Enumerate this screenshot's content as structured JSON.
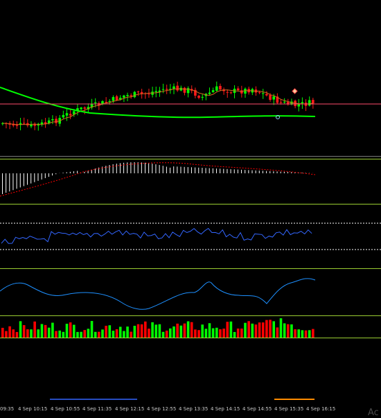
{
  "window": {
    "watermark_text": "Ac"
  },
  "colors": {
    "background": "#000000",
    "bull_candle": "#00ff00",
    "bear_candle": "#ff1a1a",
    "slow_ma": "#00ff00",
    "fast_ma": "#d2691e",
    "price_line": "#ff4d6d",
    "macd_hist": "#ffffff",
    "macd_signal": "#ff0000",
    "rsi_line": "#3366ff",
    "cci_line": "#1e90ff",
    "volume_up": "#00ff00",
    "volume_down": "#ff0000",
    "separator": "#9acd32",
    "level_line": "#ffffff",
    "time_axis_text": "#c8c8c8",
    "blue_marker": "#3366ff",
    "orange_marker": "#ff8c00"
  },
  "time_axis": {
    "labels": [
      "09:35",
      "4 Sep 10:15",
      "4 Sep 10:55",
      "4 Sep 11:35",
      "4 Sep 12:15",
      "4 Sep 12:55",
      "4 Sep 13:35",
      "4 Sep 14:15",
      "4 Sep 14:55",
      "4 Sep 15:35",
      "4 Sep 16:15"
    ]
  },
  "panels": {
    "main": {
      "indicator_names": [
        "price-candles",
        "slow-moving-average",
        "fast-moving-average",
        "current-price-line"
      ]
    },
    "macd": {
      "indicator_names": [
        "macd-histogram",
        "macd-signal-line"
      ]
    },
    "rsi": {
      "indicator_names": [
        "rsi-line",
        "rsi-upper-level",
        "rsi-lower-level"
      ]
    },
    "cci": {
      "indicator_names": [
        "cci-line"
      ]
    },
    "volume": {
      "indicator_names": [
        "volume-bars"
      ]
    }
  }
}
